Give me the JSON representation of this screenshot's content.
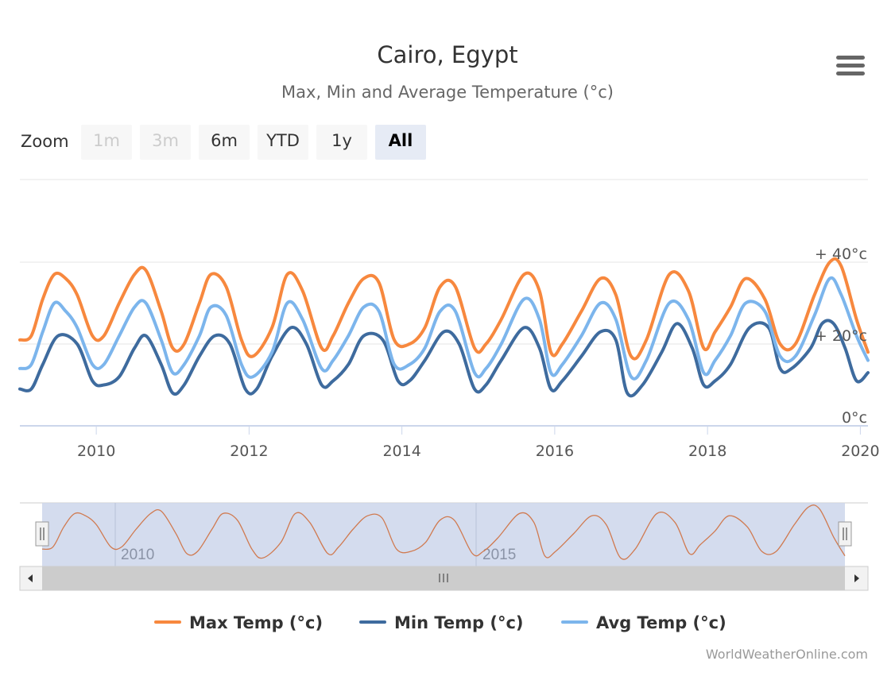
{
  "title": "Cairo, Egypt",
  "subtitle": "Max, Min and Average Temperature (°c)",
  "menu_icon": "hamburger-menu-icon",
  "zoom": {
    "label": "Zoom",
    "buttons": [
      {
        "label": "1m",
        "state": "disabled"
      },
      {
        "label": "3m",
        "state": "disabled"
      },
      {
        "label": "6m",
        "state": "normal"
      },
      {
        "label": "YTD",
        "state": "normal"
      },
      {
        "label": "1y",
        "state": "normal"
      },
      {
        "label": "All",
        "state": "active"
      }
    ]
  },
  "navigator": {
    "tick_labels": [
      "2010",
      "2015"
    ]
  },
  "credit": "WorldWeatherOnline.com",
  "chart_data": {
    "type": "line",
    "x_range": [
      2009.0,
      2020.1
    ],
    "ylim": [
      0,
      40
    ],
    "y_ticks": [
      {
        "value": 0,
        "label": "0°c"
      },
      {
        "value": 20,
        "label": "+ 20°c"
      },
      {
        "value": 40,
        "label": "+ 40°c"
      }
    ],
    "x_ticks": [
      {
        "value": 2010,
        "label": "2010"
      },
      {
        "value": 2012,
        "label": "2012"
      },
      {
        "value": 2014,
        "label": "2014"
      },
      {
        "value": 2016,
        "label": "2016"
      },
      {
        "value": 2018,
        "label": "2018"
      },
      {
        "value": 2020,
        "label": "2020"
      }
    ],
    "grid": true,
    "legend_position": "bottom",
    "series": [
      {
        "name": "Max Temp (°c)",
        "color": "#f7883e",
        "x": [
          2009.0,
          2009.15,
          2009.3,
          2009.45,
          2009.6,
          2009.75,
          2009.95,
          2010.1,
          2010.3,
          2010.5,
          2010.65,
          2010.85,
          2011.0,
          2011.15,
          2011.35,
          2011.5,
          2011.7,
          2011.9,
          2012.05,
          2012.3,
          2012.5,
          2012.7,
          2012.95,
          2013.1,
          2013.3,
          2013.5,
          2013.7,
          2013.9,
          2014.1,
          2014.3,
          2014.5,
          2014.7,
          2014.95,
          2015.1,
          2015.3,
          2015.6,
          2015.8,
          2015.95,
          2016.1,
          2016.35,
          2016.6,
          2016.8,
          2017.0,
          2017.2,
          2017.5,
          2017.75,
          2017.95,
          2018.1,
          2018.3,
          2018.5,
          2018.75,
          2018.95,
          2019.15,
          2019.4,
          2019.6,
          2019.75,
          2019.95,
          2020.1
        ],
        "y": [
          21,
          22,
          31,
          37,
          36,
          32,
          22,
          22,
          30,
          37,
          38,
          28,
          19,
          20,
          30,
          37,
          34,
          21,
          17,
          24,
          37,
          33,
          19,
          22,
          30,
          36,
          35,
          21,
          20,
          24,
          34,
          34,
          19,
          20,
          26,
          37,
          33,
          18,
          20,
          28,
          36,
          32,
          17,
          21,
          37,
          33,
          19,
          23,
          29,
          36,
          31,
          20,
          20,
          32,
          40,
          39,
          26,
          18
        ]
      },
      {
        "name": "Min Temp (°c)",
        "color": "#3e6b9e",
        "x": [
          2009.0,
          2009.15,
          2009.3,
          2009.5,
          2009.75,
          2009.95,
          2010.1,
          2010.3,
          2010.5,
          2010.65,
          2010.85,
          2011.0,
          2011.15,
          2011.35,
          2011.55,
          2011.75,
          2011.95,
          2012.1,
          2012.3,
          2012.55,
          2012.75,
          2012.95,
          2013.1,
          2013.3,
          2013.5,
          2013.75,
          2013.95,
          2014.1,
          2014.3,
          2014.55,
          2014.75,
          2014.95,
          2015.1,
          2015.3,
          2015.6,
          2015.8,
          2015.95,
          2016.1,
          2016.35,
          2016.6,
          2016.8,
          2016.95,
          2017.15,
          2017.4,
          2017.6,
          2017.8,
          2017.95,
          2018.1,
          2018.3,
          2018.55,
          2018.8,
          2018.95,
          2019.1,
          2019.35,
          2019.5,
          2019.65,
          2019.8,
          2019.95,
          2020.1
        ],
        "y": [
          9,
          9,
          15,
          22,
          20,
          11,
          10,
          12,
          19,
          22,
          15,
          8,
          10,
          17,
          22,
          20,
          9,
          9,
          17,
          24,
          20,
          10,
          11,
          15,
          22,
          21,
          11,
          11,
          16,
          23,
          20,
          9,
          10,
          16,
          24,
          19,
          9,
          11,
          17,
          23,
          21,
          8,
          10,
          18,
          25,
          19,
          10,
          11,
          15,
          24,
          24,
          14,
          14,
          19,
          25,
          25,
          19,
          11,
          13
        ]
      },
      {
        "name": "Avg Temp (°c)",
        "color": "#7cb5ec",
        "x": [
          2009.0,
          2009.15,
          2009.3,
          2009.45,
          2009.6,
          2009.75,
          2009.95,
          2010.1,
          2010.3,
          2010.5,
          2010.65,
          2010.85,
          2011.0,
          2011.15,
          2011.35,
          2011.5,
          2011.7,
          2011.9,
          2012.05,
          2012.3,
          2012.5,
          2012.7,
          2012.95,
          2013.1,
          2013.3,
          2013.5,
          2013.7,
          2013.9,
          2014.1,
          2014.3,
          2014.5,
          2014.7,
          2014.95,
          2015.1,
          2015.3,
          2015.6,
          2015.8,
          2015.95,
          2016.1,
          2016.35,
          2016.6,
          2016.8,
          2017.0,
          2017.2,
          2017.5,
          2017.75,
          2017.95,
          2018.1,
          2018.3,
          2018.5,
          2018.75,
          2018.95,
          2019.15,
          2019.4,
          2019.6,
          2019.75,
          2019.95,
          2020.1
        ],
        "y": [
          14,
          15,
          23,
          30,
          28,
          24,
          15,
          15,
          22,
          29,
          30,
          21,
          13,
          15,
          22,
          29,
          27,
          15,
          12,
          18,
          30,
          26,
          14,
          16,
          22,
          29,
          28,
          15,
          15,
          19,
          28,
          28,
          13,
          14,
          20,
          31,
          26,
          13,
          15,
          22,
          30,
          26,
          12,
          16,
          30,
          26,
          13,
          16,
          22,
          30,
          28,
          17,
          17,
          27,
          36,
          32,
          22,
          16
        ]
      }
    ]
  }
}
